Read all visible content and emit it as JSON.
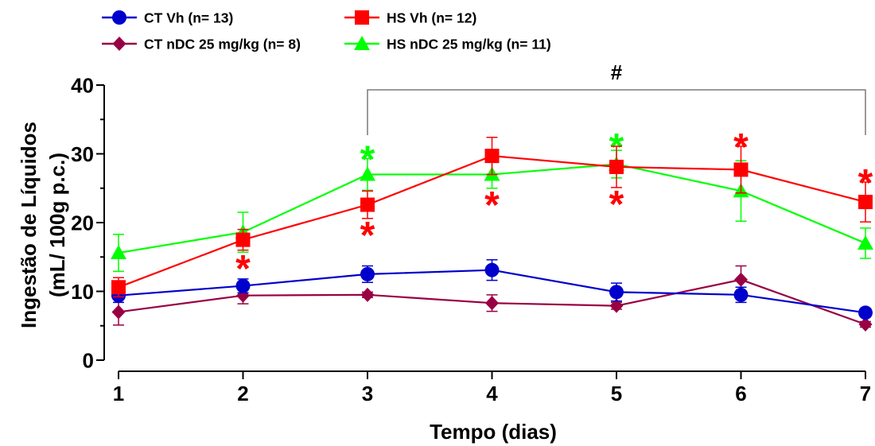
{
  "chart_data": {
    "type": "line",
    "xlabel": "Tempo (dias)",
    "ylabel": [
      "Ingestão de Líquidos",
      "(mL/ 100g p.c.)"
    ],
    "x": [
      1,
      2,
      3,
      4,
      5,
      6,
      7
    ],
    "xlim": [
      1,
      7
    ],
    "y_ticks": [
      0,
      10,
      20,
      30,
      40
    ],
    "ylim": [
      0,
      40
    ],
    "grid": false,
    "legend_position": "top-left",
    "series": [
      {
        "name": "CT Vh (n= 13)",
        "color": "#0000CC",
        "marker": "circle",
        "values": [
          9.4,
          10.8,
          12.5,
          13.1,
          9.9,
          9.5,
          6.9
        ],
        "error": [
          1.0,
          1.0,
          1.2,
          1.5,
          1.3,
          1.1,
          0.6
        ]
      },
      {
        "name": "HS Vh (n= 12)",
        "color": "#FF0000",
        "marker": "square",
        "values": [
          10.6,
          17.5,
          22.6,
          29.7,
          28.1,
          27.7,
          23.0
        ],
        "error": [
          1.4,
          1.5,
          2.0,
          2.7,
          3.0,
          3.4,
          2.9
        ]
      },
      {
        "name": "CT nDC 25 mg/kg (n= 8)",
        "color": "#990044",
        "marker": "diamond",
        "values": [
          7.0,
          9.4,
          9.5,
          8.3,
          7.9,
          11.7,
          5.2
        ],
        "error": [
          1.9,
          1.2,
          0.4,
          1.2,
          0.5,
          2.0,
          0.4
        ]
      },
      {
        "name": "HS nDC 25 mg/kg (n= 11)",
        "color": "#00FF00",
        "marker": "triangle",
        "values": [
          15.6,
          18.6,
          27.0,
          27.0,
          28.5,
          24.6,
          17.0
        ],
        "error": [
          2.7,
          2.9,
          2.3,
          2.0,
          2.0,
          4.4,
          2.2
        ]
      }
    ],
    "annotations": [
      {
        "x": 2,
        "text": "*",
        "color": "#FF0000",
        "side": "below"
      },
      {
        "x": 3,
        "text": "*",
        "color": "#00FF00",
        "side": "above"
      },
      {
        "x": 3,
        "text": "*",
        "color": "#FF0000",
        "side": "below"
      },
      {
        "x": 4,
        "text": "*",
        "color": "#FF0000",
        "side": "below"
      },
      {
        "x": 5,
        "text": "*",
        "color": "#00FF00",
        "side": "above"
      },
      {
        "x": 5,
        "text": "*",
        "color": "#FF0000",
        "side": "below"
      },
      {
        "x": 6,
        "text": "*",
        "color": "#FF0000",
        "side": "above"
      },
      {
        "x": 7,
        "text": "*",
        "color": "#FF0000",
        "side": "above"
      }
    ],
    "bracket": {
      "x_from": 3,
      "x_to": 7,
      "label": "#"
    }
  }
}
